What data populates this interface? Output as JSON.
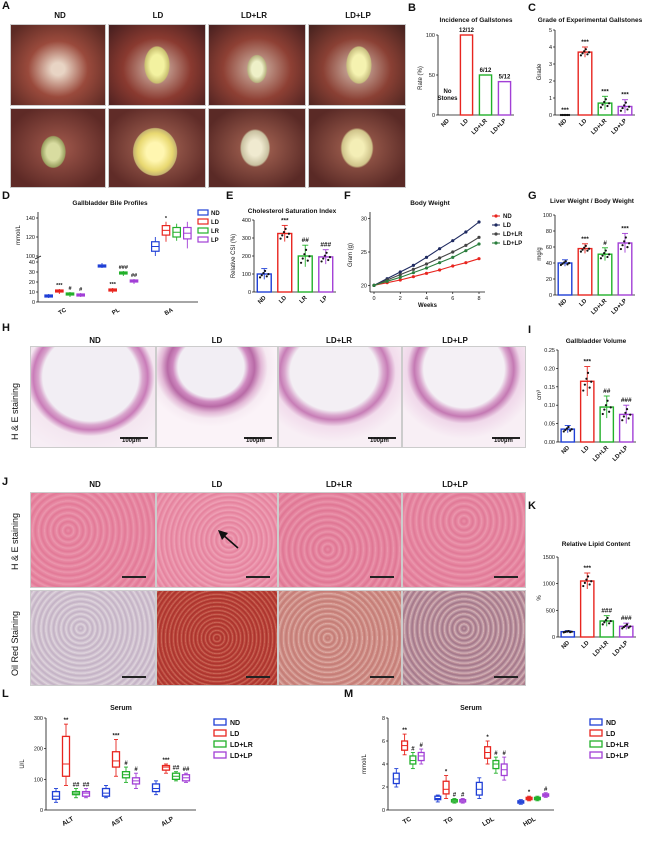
{
  "panel_letters": [
    "A",
    "B",
    "C",
    "D",
    "E",
    "F",
    "G",
    "H",
    "I",
    "J",
    "K",
    "L",
    "M"
  ],
  "groups4": [
    "ND",
    "LD",
    "LD+LR",
    "LD+LP"
  ],
  "labels": {
    "he_staining": "H & E staining",
    "oil_red": "Oil Red Staining",
    "scale_100": "100µm"
  },
  "colors": {
    "ND": "#1f3fd6",
    "LD": "#e8251f",
    "LR": "#22b02a",
    "LP": "#a23fd6",
    "dark": "#1e2a60"
  },
  "chart_data": [
    {
      "id": "B",
      "type": "bar",
      "title": "Incidence of Gallstones",
      "ylabel": "Rate (%)",
      "categories": [
        "ND",
        "LD",
        "LD+LR",
        "LD+LP"
      ],
      "values": [
        0,
        100,
        50,
        41.7
      ],
      "ylim": [
        0,
        100
      ],
      "yticks": [
        0,
        50,
        100
      ],
      "bar_labels": [
        "",
        "12/12",
        "6/12",
        "5/12"
      ],
      "annotation_line1": "No",
      "annotation_line2": "Stones"
    },
    {
      "id": "C",
      "type": "bar",
      "title": "Grade of Experimental Gallstones",
      "ylabel": "Grade",
      "categories": [
        "ND",
        "LD",
        "LD+LR",
        "LD+LP"
      ],
      "values": [
        0,
        3.7,
        0.7,
        0.5
      ],
      "errors": [
        0,
        0.3,
        0.4,
        0.4
      ],
      "ylim": [
        0,
        5
      ],
      "yticks": [
        0,
        1,
        2,
        3,
        4,
        5
      ],
      "sig": [
        "***",
        "***",
        "***",
        "***"
      ]
    },
    {
      "id": "D",
      "type": "box",
      "title": "Gallbladder Bile Profiles",
      "ylabel": "mmol/L",
      "categories": [
        "TC",
        "PL",
        "BA"
      ],
      "series_names": [
        "ND",
        "LD",
        "LR",
        "LP"
      ],
      "yticks": [
        0,
        10,
        20,
        30,
        40,
        100,
        120,
        140
      ],
      "boxes": [
        [
          [
            4,
            5,
            6,
            7,
            8
          ],
          [
            8,
            10,
            11,
            12,
            13
          ],
          [
            5,
            7,
            8,
            9,
            10
          ],
          [
            5,
            6,
            7,
            8,
            9
          ]
        ],
        [
          [
            34,
            35,
            36,
            37,
            39
          ],
          [
            9,
            11,
            12,
            13,
            14
          ],
          [
            26,
            28,
            29,
            30,
            31
          ],
          [
            18,
            20,
            21,
            22,
            23
          ]
        ],
        [
          [
            100,
            105,
            110,
            115,
            120
          ],
          [
            115,
            122,
            127,
            132,
            136
          ],
          [
            116,
            120,
            125,
            130,
            134
          ],
          [
            108,
            118,
            124,
            130,
            136
          ]
        ]
      ],
      "sig": [
        [
          "***",
          "#",
          "#"
        ],
        [
          "***",
          "###",
          "##"
        ],
        [
          "*",
          "",
          ""
        ]
      ]
    },
    {
      "id": "E",
      "type": "bar",
      "title": "Cholesterol Saturation Index",
      "ylabel": "Relative CSI (%)",
      "categories": [
        "ND",
        "LD",
        "LR",
        "LP"
      ],
      "values": [
        100,
        325,
        200,
        195
      ],
      "errors": [
        30,
        45,
        60,
        40
      ],
      "ylim": [
        0,
        400
      ],
      "yticks": [
        0,
        100,
        200,
        300,
        400
      ],
      "sig": [
        "",
        "***",
        "##",
        "###"
      ]
    },
    {
      "id": "F",
      "type": "line",
      "title": "Body Weight",
      "xlabel": "Weeks",
      "ylabel": "Gram (g)",
      "x": [
        0,
        1,
        2,
        3,
        4,
        5,
        6,
        7,
        8
      ],
      "ylim": [
        19,
        31
      ],
      "yticks": [
        20,
        25,
        30
      ],
      "xticks": [
        0,
        2,
        4,
        6,
        8
      ],
      "series": [
        {
          "name": "ND",
          "values": [
            20,
            20.4,
            20.8,
            21.3,
            21.8,
            22.3,
            22.9,
            23.4,
            24.0
          ]
        },
        {
          "name": "LD",
          "values": [
            20,
            21.0,
            22.0,
            23.0,
            24.2,
            25.5,
            26.7,
            28.0,
            29.5
          ]
        },
        {
          "name": "LD+LR",
          "values": [
            20,
            20.8,
            21.6,
            22.4,
            23.2,
            24.1,
            25.0,
            26.0,
            27.2
          ]
        },
        {
          "name": "LD+LP",
          "values": [
            20,
            20.6,
            21.2,
            21.9,
            22.6,
            23.4,
            24.2,
            25.2,
            26.2
          ]
        }
      ]
    },
    {
      "id": "G",
      "type": "bar",
      "title": "Liver Weight / Body Weight",
      "ylabel": "mg/g",
      "categories": [
        "ND",
        "LD",
        "LD+LR",
        "LD+LP"
      ],
      "values": [
        40,
        58,
        51,
        65
      ],
      "errors": [
        4,
        6,
        8,
        12
      ],
      "ylim": [
        0,
        100
      ],
      "yticks": [
        0,
        20,
        40,
        60,
        80,
        100
      ],
      "sig": [
        "",
        "***",
        "#",
        "***"
      ]
    },
    {
      "id": "I",
      "type": "bar",
      "title": "Gallbladder Volume",
      "ylabel": "cm³",
      "categories": [
        "ND",
        "LD",
        "LD+LR",
        "LD+LP"
      ],
      "values": [
        0.035,
        0.165,
        0.095,
        0.075
      ],
      "errors": [
        0.01,
        0.04,
        0.03,
        0.025
      ],
      "ylim": [
        0,
        0.25
      ],
      "yticks": [
        0.0,
        0.05,
        0.1,
        0.15,
        0.2,
        0.25
      ],
      "sig": [
        "",
        "***",
        "##",
        "###"
      ]
    },
    {
      "id": "K",
      "type": "bar",
      "title": "Relative Lipid Content",
      "ylabel": "%",
      "categories": [
        "ND",
        "LD",
        "LD+LR",
        "LD+LP"
      ],
      "values": [
        100,
        1050,
        300,
        200
      ],
      "errors": [
        20,
        150,
        100,
        60
      ],
      "ylim": [
        0,
        1500
      ],
      "yticks": [
        0,
        500,
        1000,
        1500
      ],
      "sig": [
        "",
        "***",
        "###",
        "###"
      ]
    },
    {
      "id": "L",
      "type": "box",
      "title": "Serum",
      "ylabel": "U/L",
      "categories": [
        "ALT",
        "AST",
        "ALP"
      ],
      "series_names": [
        "ND",
        "LD",
        "LD+LR",
        "LD+LP"
      ],
      "ylim": [
        0,
        300
      ],
      "yticks": [
        0,
        100,
        200,
        300
      ],
      "boxes": [
        [
          [
            25,
            35,
            45,
            60,
            70
          ],
          [
            80,
            110,
            150,
            240,
            280
          ],
          [
            40,
            50,
            55,
            60,
            70
          ],
          [
            40,
            45,
            55,
            60,
            70
          ]
        ],
        [
          [
            40,
            45,
            55,
            70,
            80
          ],
          [
            110,
            140,
            160,
            190,
            230
          ],
          [
            90,
            105,
            115,
            125,
            140
          ],
          [
            70,
            85,
            95,
            105,
            120
          ]
        ],
        [
          [
            50,
            60,
            70,
            85,
            95
          ],
          [
            120,
            130,
            140,
            145,
            150
          ],
          [
            95,
            100,
            110,
            120,
            125
          ],
          [
            90,
            95,
            105,
            115,
            120
          ]
        ]
      ],
      "sig": [
        [
          "**",
          "##",
          "##"
        ],
        [
          "***",
          "#",
          "#"
        ],
        [
          "***",
          "##",
          "##"
        ]
      ]
    },
    {
      "id": "M",
      "type": "box",
      "title": "Serum",
      "ylabel": "mmol/L",
      "categories": [
        "TC",
        "TG",
        "LDL",
        "HDL"
      ],
      "series_names": [
        "ND",
        "LD",
        "LD+LR",
        "LD+LP"
      ],
      "ylim": [
        0,
        8
      ],
      "yticks": [
        0,
        2,
        4,
        6,
        8
      ],
      "boxes": [
        [
          [
            2,
            2.3,
            2.7,
            3.2,
            3.6
          ],
          [
            4.8,
            5.2,
            5.6,
            6.0,
            6.6
          ],
          [
            3.6,
            4.0,
            4.3,
            4.7,
            5.0
          ],
          [
            4.0,
            4.3,
            4.7,
            5.0,
            5.3
          ]
        ],
        [
          [
            0.7,
            0.9,
            1.0,
            1.2,
            1.3
          ],
          [
            1.0,
            1.4,
            1.8,
            2.5,
            3.0
          ],
          [
            0.6,
            0.7,
            0.8,
            0.9,
            1.0
          ],
          [
            0.6,
            0.7,
            0.8,
            0.9,
            1.0
          ]
        ],
        [
          [
            1.0,
            1.3,
            1.8,
            2.4,
            2.8
          ],
          [
            4.0,
            4.5,
            5.0,
            5.5,
            6.0
          ],
          [
            3.2,
            3.6,
            4.0,
            4.3,
            4.6
          ],
          [
            2.6,
            3.0,
            3.5,
            4.0,
            4.6
          ]
        ],
        [
          [
            0.5,
            0.6,
            0.7,
            0.8,
            0.9
          ],
          [
            0.8,
            0.9,
            1.0,
            1.1,
            1.2
          ],
          [
            0.8,
            0.9,
            1.0,
            1.1,
            1.2
          ],
          [
            1.1,
            1.2,
            1.3,
            1.4,
            1.5
          ]
        ]
      ],
      "sig": [
        [
          "**",
          "#",
          "#"
        ],
        [
          "*",
          "#",
          "#"
        ],
        [
          "*",
          "#",
          "#"
        ],
        [
          "*",
          "",
          "#"
        ]
      ]
    }
  ]
}
